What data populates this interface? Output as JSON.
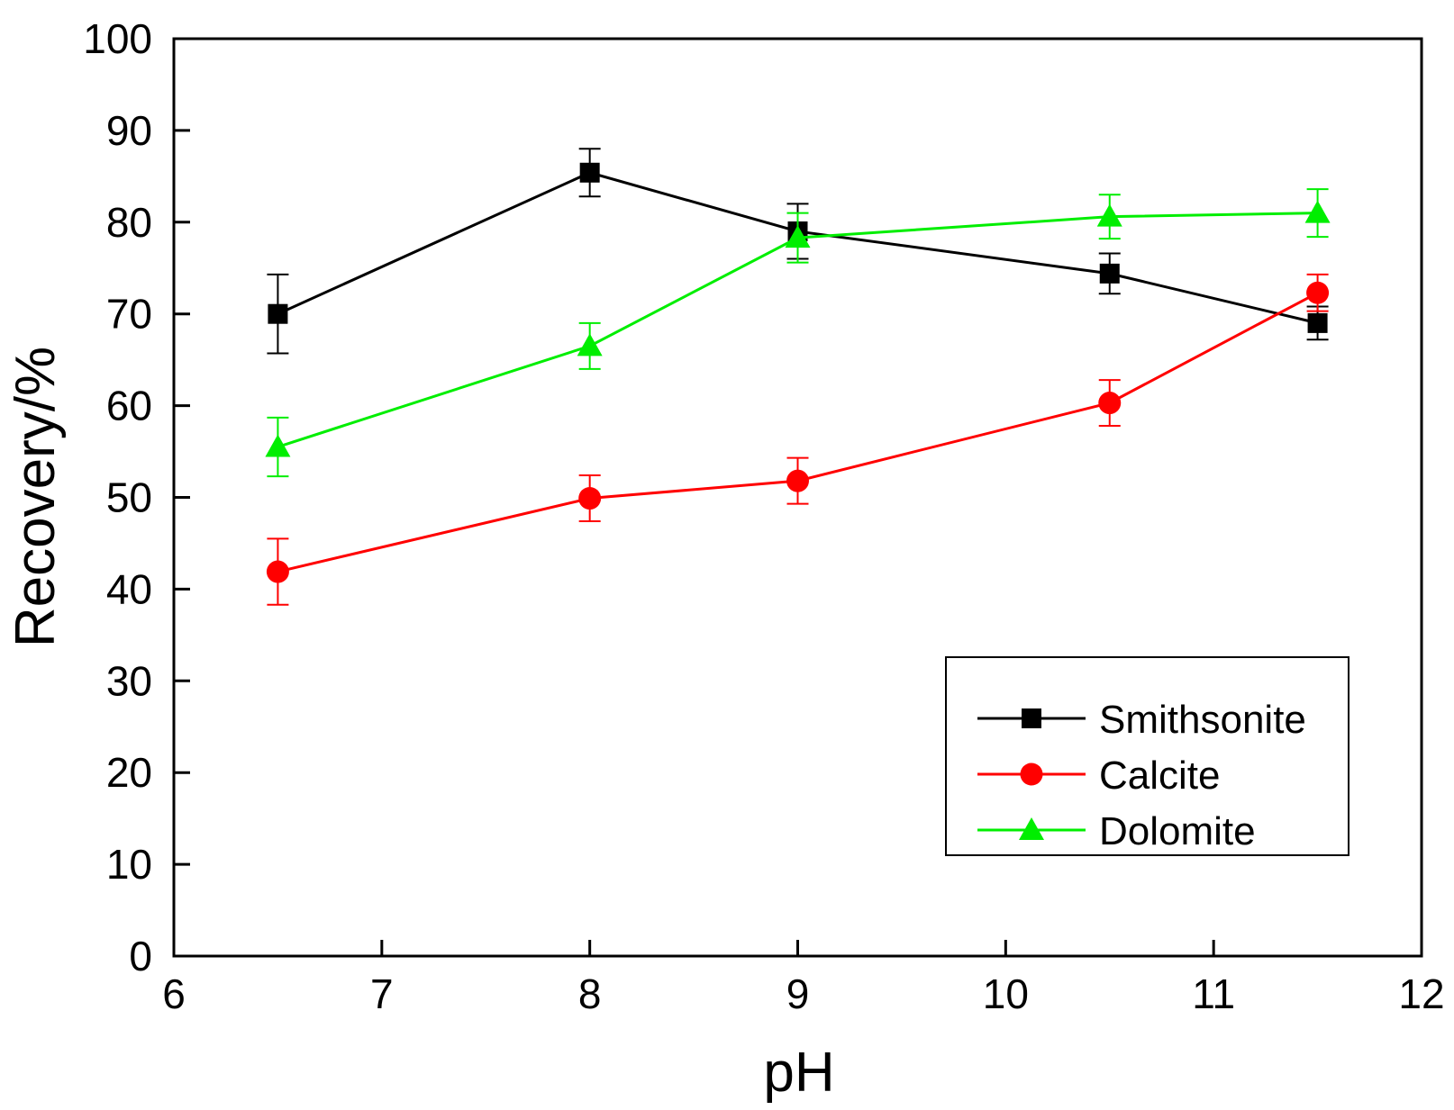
{
  "chart_data": {
    "type": "line",
    "title": "",
    "xlabel": "pH",
    "ylabel": "Recovery/%",
    "xlim": [
      6,
      12
    ],
    "ylim": [
      0,
      100
    ],
    "xticks": [
      6,
      7,
      8,
      9,
      10,
      11,
      12
    ],
    "yticks": [
      0,
      10,
      20,
      30,
      40,
      50,
      60,
      70,
      80,
      90,
      100
    ],
    "grid": false,
    "legend_position": "bottom-right",
    "x": [
      6.5,
      8,
      9,
      10.5,
      11.5
    ],
    "series": [
      {
        "name": "Smithsonite",
        "color": "#000000",
        "marker": "square",
        "values": [
          70.0,
          85.4,
          79.0,
          74.4,
          69.0
        ],
        "errors": [
          4.3,
          2.6,
          3.0,
          2.2,
          1.8
        ]
      },
      {
        "name": "Calcite",
        "color": "#ff0000",
        "marker": "circle",
        "values": [
          41.9,
          49.9,
          51.8,
          60.3,
          72.3
        ],
        "errors": [
          3.6,
          2.5,
          2.5,
          2.5,
          2.0
        ]
      },
      {
        "name": "Dolomite",
        "color": "#00ee00",
        "marker": "triangle",
        "values": [
          55.5,
          66.5,
          78.3,
          80.6,
          81.0
        ],
        "errors": [
          3.2,
          2.5,
          2.7,
          2.4,
          2.6
        ]
      }
    ]
  }
}
